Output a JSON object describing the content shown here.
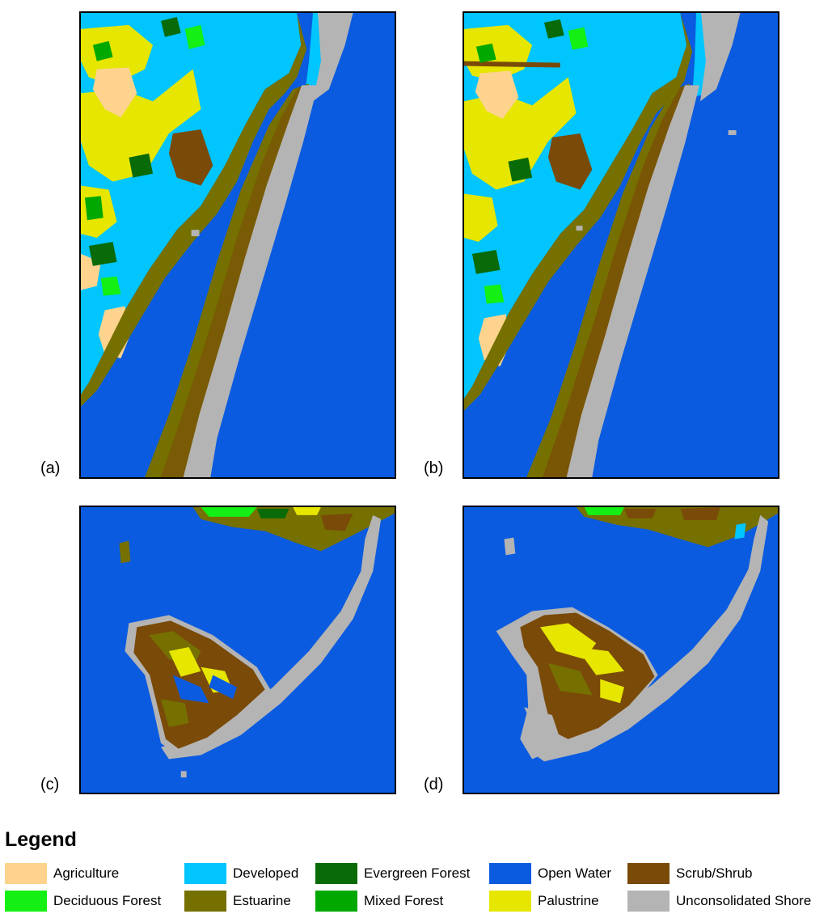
{
  "panels": [
    {
      "id": "a",
      "label": "(a)"
    },
    {
      "id": "b",
      "label": "(b)"
    },
    {
      "id": "c",
      "label": "(c)"
    },
    {
      "id": "d",
      "label": "(d)"
    }
  ],
  "legend": {
    "title": "Legend",
    "items": [
      {
        "label": "Agriculture",
        "color": "#fdd38e"
      },
      {
        "label": "Deciduous Forest",
        "color": "#14f014"
      },
      {
        "label": "Developed",
        "color": "#00c5ff"
      },
      {
        "label": "Estuarine",
        "color": "#757000"
      },
      {
        "label": "Evergreen Forest",
        "color": "#086b08"
      },
      {
        "label": "Mixed Forest",
        "color": "#00a800"
      },
      {
        "label": "Open Water",
        "color": "#0a5be0"
      },
      {
        "label": "Palustrine",
        "color": "#e6e600"
      },
      {
        "label": "Scrub/Shrub",
        "color": "#7a4a08"
      },
      {
        "label": "Unconsolidated Shore",
        "color": "#b4b4b4"
      }
    ]
  }
}
